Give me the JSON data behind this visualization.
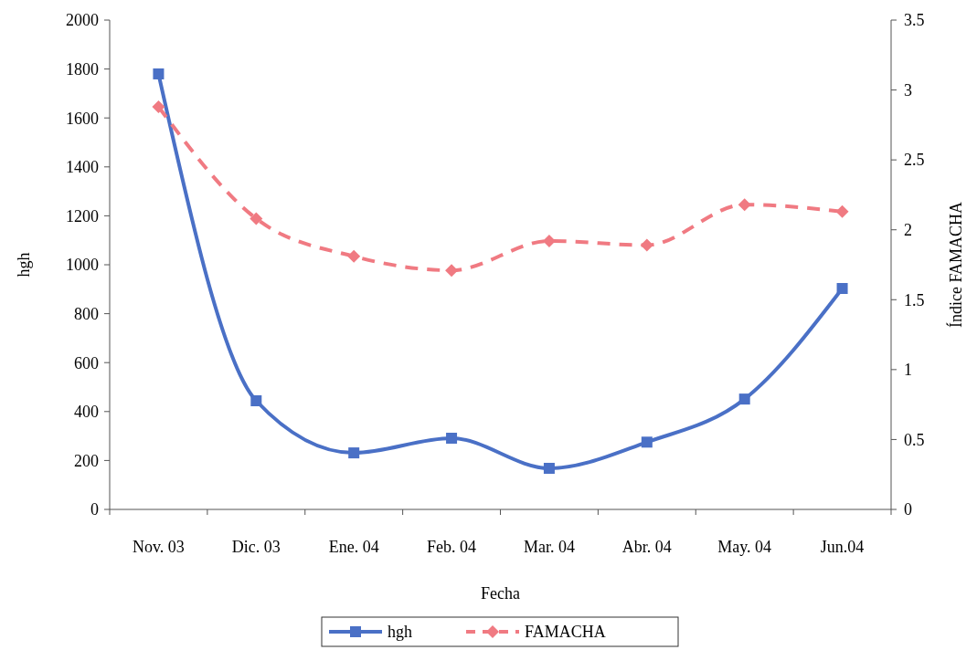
{
  "chart_data": {
    "type": "line",
    "xlabel": "Fecha",
    "ylabel": "hgh",
    "y2label": "Índice FAMACHA",
    "categories": [
      "Nov. 03",
      "Dic. 03",
      "Ene. 04",
      "Feb. 04",
      "Mar. 04",
      "Abr. 04",
      "May. 04",
      "Jun.04"
    ],
    "series": [
      {
        "name": "hgh",
        "color": "#4a70c6",
        "marker": "square",
        "line_style": "solid",
        "values": [
          1780,
          444,
          231,
          291,
          168,
          275,
          451,
          903
        ]
      },
      {
        "name": "FAMACHA",
        "color": "#f07a82",
        "marker": "diamond",
        "line_style": "dashed",
        "axis": "y2",
        "values": [
          2.88,
          2.08,
          1.81,
          1.71,
          1.92,
          1.89,
          2.18,
          2.13
        ]
      }
    ],
    "ylim": [
      0,
      2000
    ],
    "yticks": [
      0,
      200,
      400,
      600,
      800,
      1000,
      1200,
      1400,
      1600,
      1800,
      2000
    ],
    "y2lim": [
      0,
      3.5
    ],
    "y2ticks": [
      0,
      0.5,
      1,
      1.5,
      2,
      2.5,
      3,
      3.5
    ],
    "legend": "bottom",
    "grid": false
  }
}
